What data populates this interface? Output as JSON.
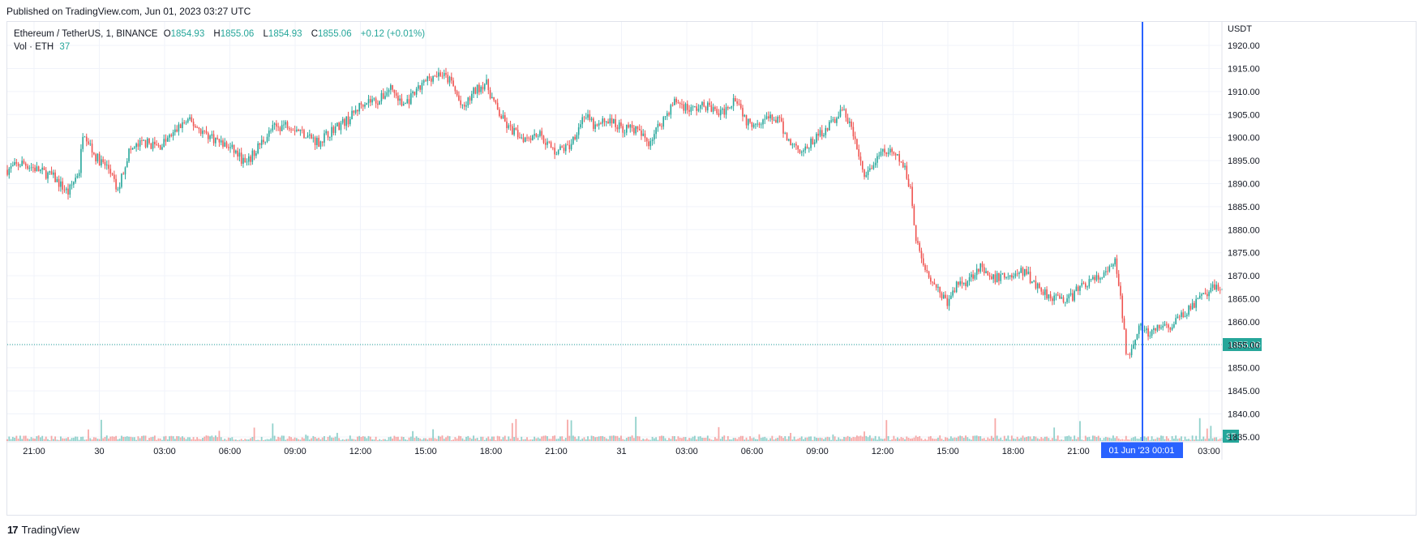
{
  "published": "Published on TradingView.com, Jun 01, 2023 03:27 UTC",
  "legend": {
    "symbol": "Ethereum / TetherUS, 1, BINANCE",
    "o_label": "O",
    "o": "1854.93",
    "h_label": "H",
    "h": "1855.06",
    "l_label": "L",
    "l": "1854.93",
    "c_label": "C",
    "c": "1855.06",
    "change": "+0.12 (+0.01%)",
    "vol_label": "Vol · ETH",
    "vol": "37"
  },
  "footer": {
    "brand": "TradingView",
    "logo": "17"
  },
  "colors": {
    "up": "#26a69a",
    "down": "#ef5350",
    "crosshair": "#2962ff",
    "grid": "#f0f3fa",
    "price_line": "#26a69a"
  },
  "chart_data": {
    "type": "candlestick",
    "symbol": "Ethereum / TetherUS",
    "interval": "1",
    "exchange": "BINANCE",
    "price_axis_unit": "USDT",
    "ylim": [
      1832,
      1923
    ],
    "yticks": [
      1835,
      1840,
      1845,
      1850,
      1855,
      1860,
      1865,
      1870,
      1875,
      1880,
      1885,
      1890,
      1895,
      1900,
      1905,
      1910,
      1915,
      1920
    ],
    "x_ticks": [
      "21:00",
      "30",
      "03:00",
      "06:00",
      "09:00",
      "12:00",
      "15:00",
      "18:00",
      "21:00",
      "31",
      "03:00",
      "06:00",
      "09:00",
      "12:00",
      "15:00",
      "18:00",
      "21:00",
      "03:00"
    ],
    "x_range_hours": [
      -1.4,
      30.6
    ],
    "anchors_price": [
      [
        -1.4,
        1893
      ],
      [
        -1.0,
        1894.5
      ],
      [
        -0.6,
        1893
      ],
      [
        -0.2,
        1891.5
      ],
      [
        0.2,
        1888
      ],
      [
        0.5,
        1893
      ],
      [
        0.6,
        1902
      ],
      [
        0.9,
        1896
      ],
      [
        1.3,
        1893
      ],
      [
        1.5,
        1888
      ],
      [
        1.6,
        1891
      ],
      [
        1.8,
        1897
      ],
      [
        2.2,
        1899
      ],
      [
        2.6,
        1898
      ],
      [
        3.0,
        1901
      ],
      [
        3.2,
        1903
      ],
      [
        3.4,
        1903.5
      ],
      [
        3.8,
        1901
      ],
      [
        4.2,
        1899
      ],
      [
        4.6,
        1897
      ],
      [
        4.9,
        1894
      ],
      [
        5.2,
        1898
      ],
      [
        5.6,
        1902
      ],
      [
        6.0,
        1903
      ],
      [
        6.4,
        1901
      ],
      [
        6.8,
        1899
      ],
      [
        7.2,
        1902
      ],
      [
        7.6,
        1904
      ],
      [
        8.0,
        1908
      ],
      [
        8.4,
        1908
      ],
      [
        8.7,
        1911
      ],
      [
        9.0,
        1907
      ],
      [
        9.3,
        1909
      ],
      [
        9.7,
        1913
      ],
      [
        10.0,
        1914
      ],
      [
        10.3,
        1912
      ],
      [
        10.6,
        1906
      ],
      [
        10.9,
        1910
      ],
      [
        11.2,
        1912
      ],
      [
        11.5,
        1906
      ],
      [
        11.8,
        1902
      ],
      [
        12.2,
        1900
      ],
      [
        12.6,
        1901
      ],
      [
        13.0,
        1897
      ],
      [
        13.4,
        1898
      ],
      [
        13.8,
        1905
      ],
      [
        14.1,
        1902
      ],
      [
        14.4,
        1904
      ],
      [
        14.8,
        1902
      ],
      [
        15.1,
        1902
      ],
      [
        15.5,
        1899
      ],
      [
        15.8,
        1903
      ],
      [
        16.2,
        1908
      ],
      [
        16.6,
        1906
      ],
      [
        17.0,
        1907
      ],
      [
        17.4,
        1905
      ],
      [
        17.8,
        1909
      ],
      [
        18.1,
        1903
      ],
      [
        18.5,
        1904
      ],
      [
        18.9,
        1904
      ],
      [
        19.2,
        1899
      ],
      [
        19.6,
        1897
      ],
      [
        19.9,
        1900
      ],
      [
        20.3,
        1903
      ],
      [
        20.6,
        1906
      ],
      [
        20.8,
        1903
      ],
      [
        21.0,
        1897
      ],
      [
        21.2,
        1891
      ],
      [
        21.4,
        1894
      ],
      [
        21.7,
        1897
      ],
      [
        22.0,
        1896
      ],
      [
        22.2,
        1894
      ],
      [
        22.4,
        1889
      ],
      [
        22.5,
        1880
      ],
      [
        22.7,
        1873
      ],
      [
        22.9,
        1870
      ],
      [
        23.2,
        1866
      ],
      [
        23.4,
        1864
      ],
      [
        23.6,
        1868
      ],
      [
        23.9,
        1869
      ],
      [
        24.2,
        1872
      ],
      [
        24.5,
        1869
      ],
      [
        24.8,
        1870
      ],
      [
        25.1,
        1870
      ],
      [
        25.4,
        1871
      ],
      [
        25.7,
        1868
      ],
      [
        26.0,
        1866
      ],
      [
        26.3,
        1865
      ],
      [
        26.6,
        1865
      ],
      [
        26.9,
        1868
      ],
      [
        27.2,
        1869
      ],
      [
        27.5,
        1870
      ],
      [
        27.8,
        1873
      ],
      [
        28.0,
        1860
      ],
      [
        28.1,
        1852
      ],
      [
        28.4,
        1859
      ],
      [
        28.7,
        1857
      ],
      [
        29.0,
        1859
      ],
      [
        29.3,
        1859
      ],
      [
        29.6,
        1862
      ],
      [
        29.9,
        1864
      ],
      [
        30.2,
        1866
      ],
      [
        30.5,
        1868
      ],
      [
        30.6,
        1867
      ]
    ],
    "annotations": {
      "last_price_label": "1855.06",
      "last_volume_label": "37",
      "crosshair_time_label": "01 Jun '23   00:01"
    },
    "grid": true
  }
}
